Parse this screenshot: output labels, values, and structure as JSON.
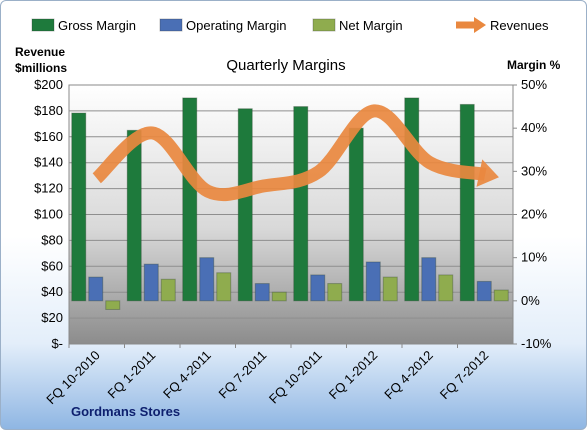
{
  "chart_data": {
    "type": "bar",
    "title": "Quarterly Margins",
    "categories": [
      "FQ 10-2010",
      "FQ 1-2011",
      "FQ 4-2011",
      "FQ 7-2011",
      "FQ 10-2011",
      "FQ 1-2012",
      "FQ 4-2012",
      "FQ 7-2012"
    ],
    "series": [
      {
        "name": "Gross Margin",
        "axis": "right",
        "color": "#1e7a3c",
        "values": [
          43.5,
          39.5,
          47,
          44.5,
          45,
          40,
          47,
          45.5
        ]
      },
      {
        "name": "Operating Margin",
        "axis": "right",
        "color": "#4a6fb5",
        "values": [
          5.5,
          8.5,
          10,
          4,
          6,
          9,
          10,
          4.5
        ]
      },
      {
        "name": "Net Margin",
        "axis": "right",
        "color": "#8fac4e",
        "values": [
          -2,
          5,
          6.5,
          2,
          4,
          5.5,
          6,
          2.5
        ]
      },
      {
        "name": "Revenues",
        "axis": "left",
        "type": "line",
        "color": "#e9883f",
        "values": [
          128,
          163,
          118,
          122,
          133,
          180,
          140,
          131
        ]
      }
    ],
    "left_axis": {
      "label": [
        "Revenue",
        "$millions"
      ],
      "ylim": [
        0,
        200
      ],
      "ticks": [
        "$-",
        "$20",
        "$40",
        "$60",
        "$80",
        "$100",
        "$120",
        "$140",
        "$160",
        "$180",
        "$200"
      ]
    },
    "right_axis": {
      "label": "Margin %",
      "ylim": [
        -10,
        50
      ],
      "ticks": [
        "-10%",
        "0%",
        "10%",
        "20%",
        "30%",
        "40%",
        "50%"
      ]
    },
    "legend_position": "top",
    "grid": true
  },
  "footer": {
    "company": "Gordmans Stores"
  }
}
